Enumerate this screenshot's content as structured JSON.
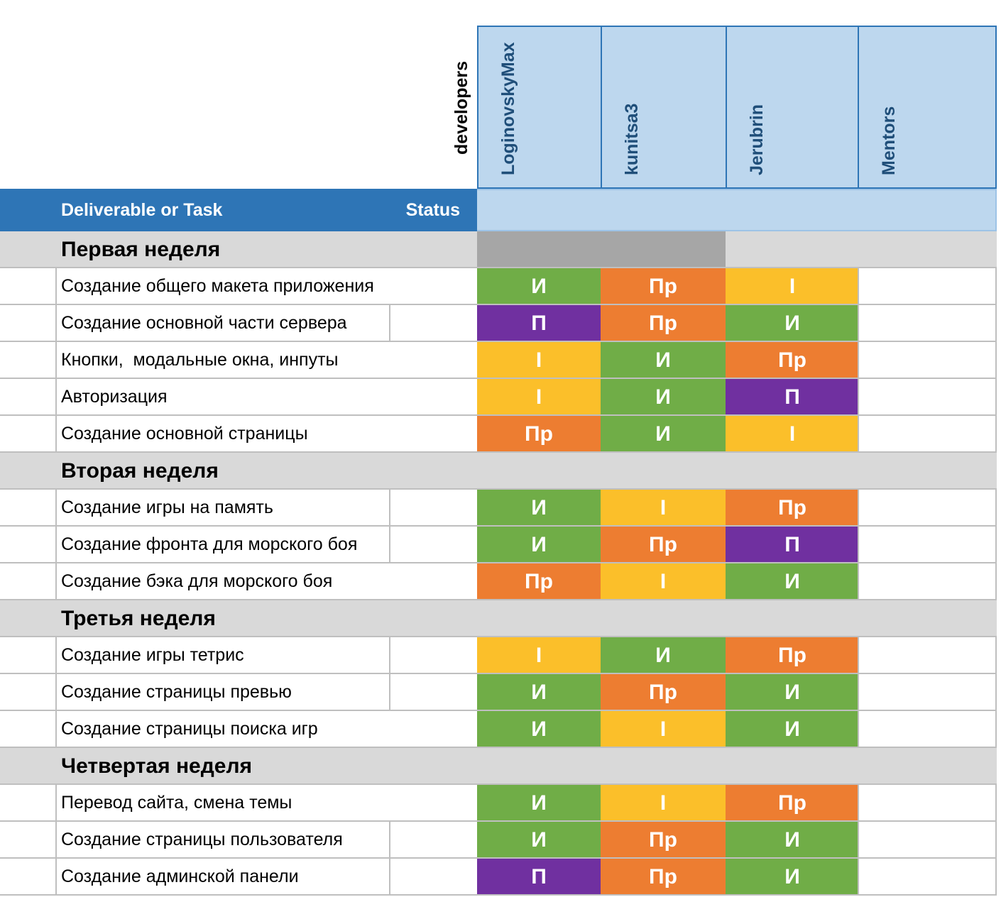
{
  "header": {
    "developers_label": "developers",
    "task_header": "Deliverable or Task",
    "status_header": "Status",
    "columns": [
      "LoginovskyMax",
      "kunitsa3",
      "Jerubrin",
      "Mentors"
    ]
  },
  "legend_colors": {
    "И": "#70ad47",
    "Пр": "#ed7d31",
    "I": "#fbbf2a",
    "П": "#7030a0"
  },
  "weeks": [
    {
      "title": "Первая неделя",
      "tasks": [
        {
          "name": "Создание общего макета приложения",
          "cells": [
            "И",
            "Пр",
            "I"
          ]
        },
        {
          "name": "Создание основной части сервера",
          "cells": [
            "П",
            "Пр",
            "И"
          ]
        },
        {
          "name": "Кнопки,  модальные окна, инпуты",
          "cells": [
            "I",
            "И",
            "Пр"
          ]
        },
        {
          "name": "Авторизация",
          "cells": [
            "I",
            "И",
            "П"
          ]
        },
        {
          "name": "Создание основной страницы",
          "cells": [
            "Пр",
            "И",
            "I"
          ]
        }
      ]
    },
    {
      "title": "Вторая неделя",
      "tasks": [
        {
          "name": "Создание игры на память",
          "cells": [
            "И",
            "I",
            "Пр"
          ]
        },
        {
          "name": "Создание фронта для морского боя",
          "cells": [
            "И",
            "Пр",
            "П"
          ]
        },
        {
          "name": "Создание бэка для морского боя",
          "cells": [
            "Пр",
            "I",
            "И"
          ]
        }
      ]
    },
    {
      "title": "Третья неделя",
      "tasks": [
        {
          "name": "Создание игры тетрис",
          "cells": [
            "I",
            "И",
            "Пр"
          ]
        },
        {
          "name": "Создание страницы превью",
          "cells": [
            "И",
            "Пр",
            "И"
          ]
        },
        {
          "name": "Создание страницы поиска игр",
          "cells": [
            "И",
            "I",
            "И"
          ]
        }
      ]
    },
    {
      "title": "Четвертая неделя",
      "tasks": [
        {
          "name": "Перевод сайта, смена темы",
          "cells": [
            "И",
            "I",
            "Пр"
          ]
        },
        {
          "name": "Создание страницы пользователя",
          "cells": [
            "И",
            "Пр",
            "И"
          ]
        },
        {
          "name": "Создание админской панели",
          "cells": [
            "П",
            "Пр",
            "И"
          ]
        }
      ]
    }
  ]
}
